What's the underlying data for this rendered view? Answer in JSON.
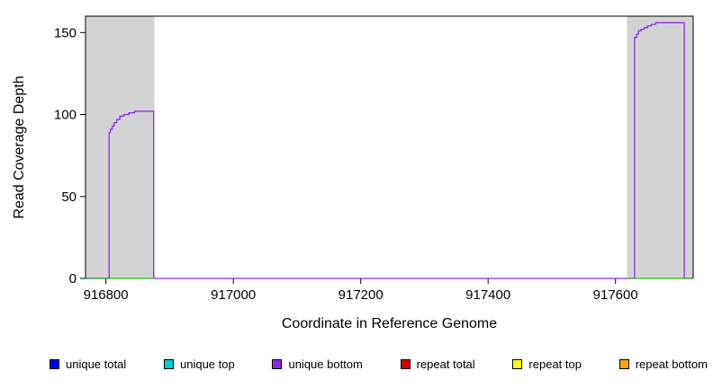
{
  "page": {
    "background": "#ffffff"
  },
  "chart_data": {
    "type": "line",
    "title": "",
    "xlabel": "Coordinate in Reference Genome",
    "ylabel": "Read Coverage Depth",
    "xlim": [
      916768,
      917722
    ],
    "ylim": [
      0,
      160
    ],
    "x_ticks": [
      916800,
      917000,
      917200,
      917400,
      917600
    ],
    "y_ticks": [
      0,
      50,
      100,
      150
    ],
    "grid": false,
    "plot_background": "#ffffff",
    "box_color": "#000000",
    "shaded_regions": [
      {
        "x0": 916768,
        "x1": 916876,
        "color": "#d3d3d3"
      },
      {
        "x0": 917618,
        "x1": 917722,
        "color": "#d3d3d3"
      }
    ],
    "series": [
      {
        "name": "unique bottom coverage",
        "color": "#8A2BE2",
        "width": 1.3,
        "points": [
          [
            916768,
            0
          ],
          [
            916805,
            0
          ],
          [
            916805,
            89
          ],
          [
            916807,
            89
          ],
          [
            916807,
            91
          ],
          [
            916810,
            91
          ],
          [
            916810,
            93
          ],
          [
            916813,
            93
          ],
          [
            916813,
            95
          ],
          [
            916817,
            95
          ],
          [
            916817,
            97
          ],
          [
            916822,
            97
          ],
          [
            916822,
            99
          ],
          [
            916828,
            99
          ],
          [
            916828,
            100
          ],
          [
            916836,
            100
          ],
          [
            916836,
            101
          ],
          [
            916845,
            101
          ],
          [
            916845,
            102
          ],
          [
            916875,
            102
          ],
          [
            916875,
            0
          ],
          [
            917630,
            0
          ],
          [
            917630,
            147
          ],
          [
            917633,
            147
          ],
          [
            917633,
            149
          ],
          [
            917636,
            149
          ],
          [
            917636,
            151
          ],
          [
            917640,
            151
          ],
          [
            917640,
            152
          ],
          [
            917645,
            152
          ],
          [
            917645,
            153
          ],
          [
            917650,
            153
          ],
          [
            917650,
            154
          ],
          [
            917656,
            154
          ],
          [
            917656,
            155
          ],
          [
            917663,
            155
          ],
          [
            917663,
            156
          ],
          [
            917708,
            156
          ],
          [
            917708,
            0
          ],
          [
            917722,
            0
          ]
        ]
      },
      {
        "name": "left shaded baseline",
        "color": "#00b400",
        "width": 1,
        "points": [
          [
            916768,
            0
          ],
          [
            916876,
            0
          ]
        ]
      },
      {
        "name": "right shaded baseline",
        "color": "#00b400",
        "width": 1,
        "points": [
          [
            917618,
            0
          ],
          [
            917722,
            0
          ]
        ]
      }
    ],
    "legend": [
      {
        "label": "unique total",
        "color": "#0000FF"
      },
      {
        "label": "unique top",
        "color": "#00CED1"
      },
      {
        "label": "unique bottom",
        "color": "#8A2BE2"
      },
      {
        "label": "repeat total",
        "color": "#CD0000"
      },
      {
        "label": "repeat top",
        "color": "#FFFF00"
      },
      {
        "label": "repeat bottom",
        "color": "#FFA500"
      }
    ],
    "legend_position": "bottom"
  }
}
